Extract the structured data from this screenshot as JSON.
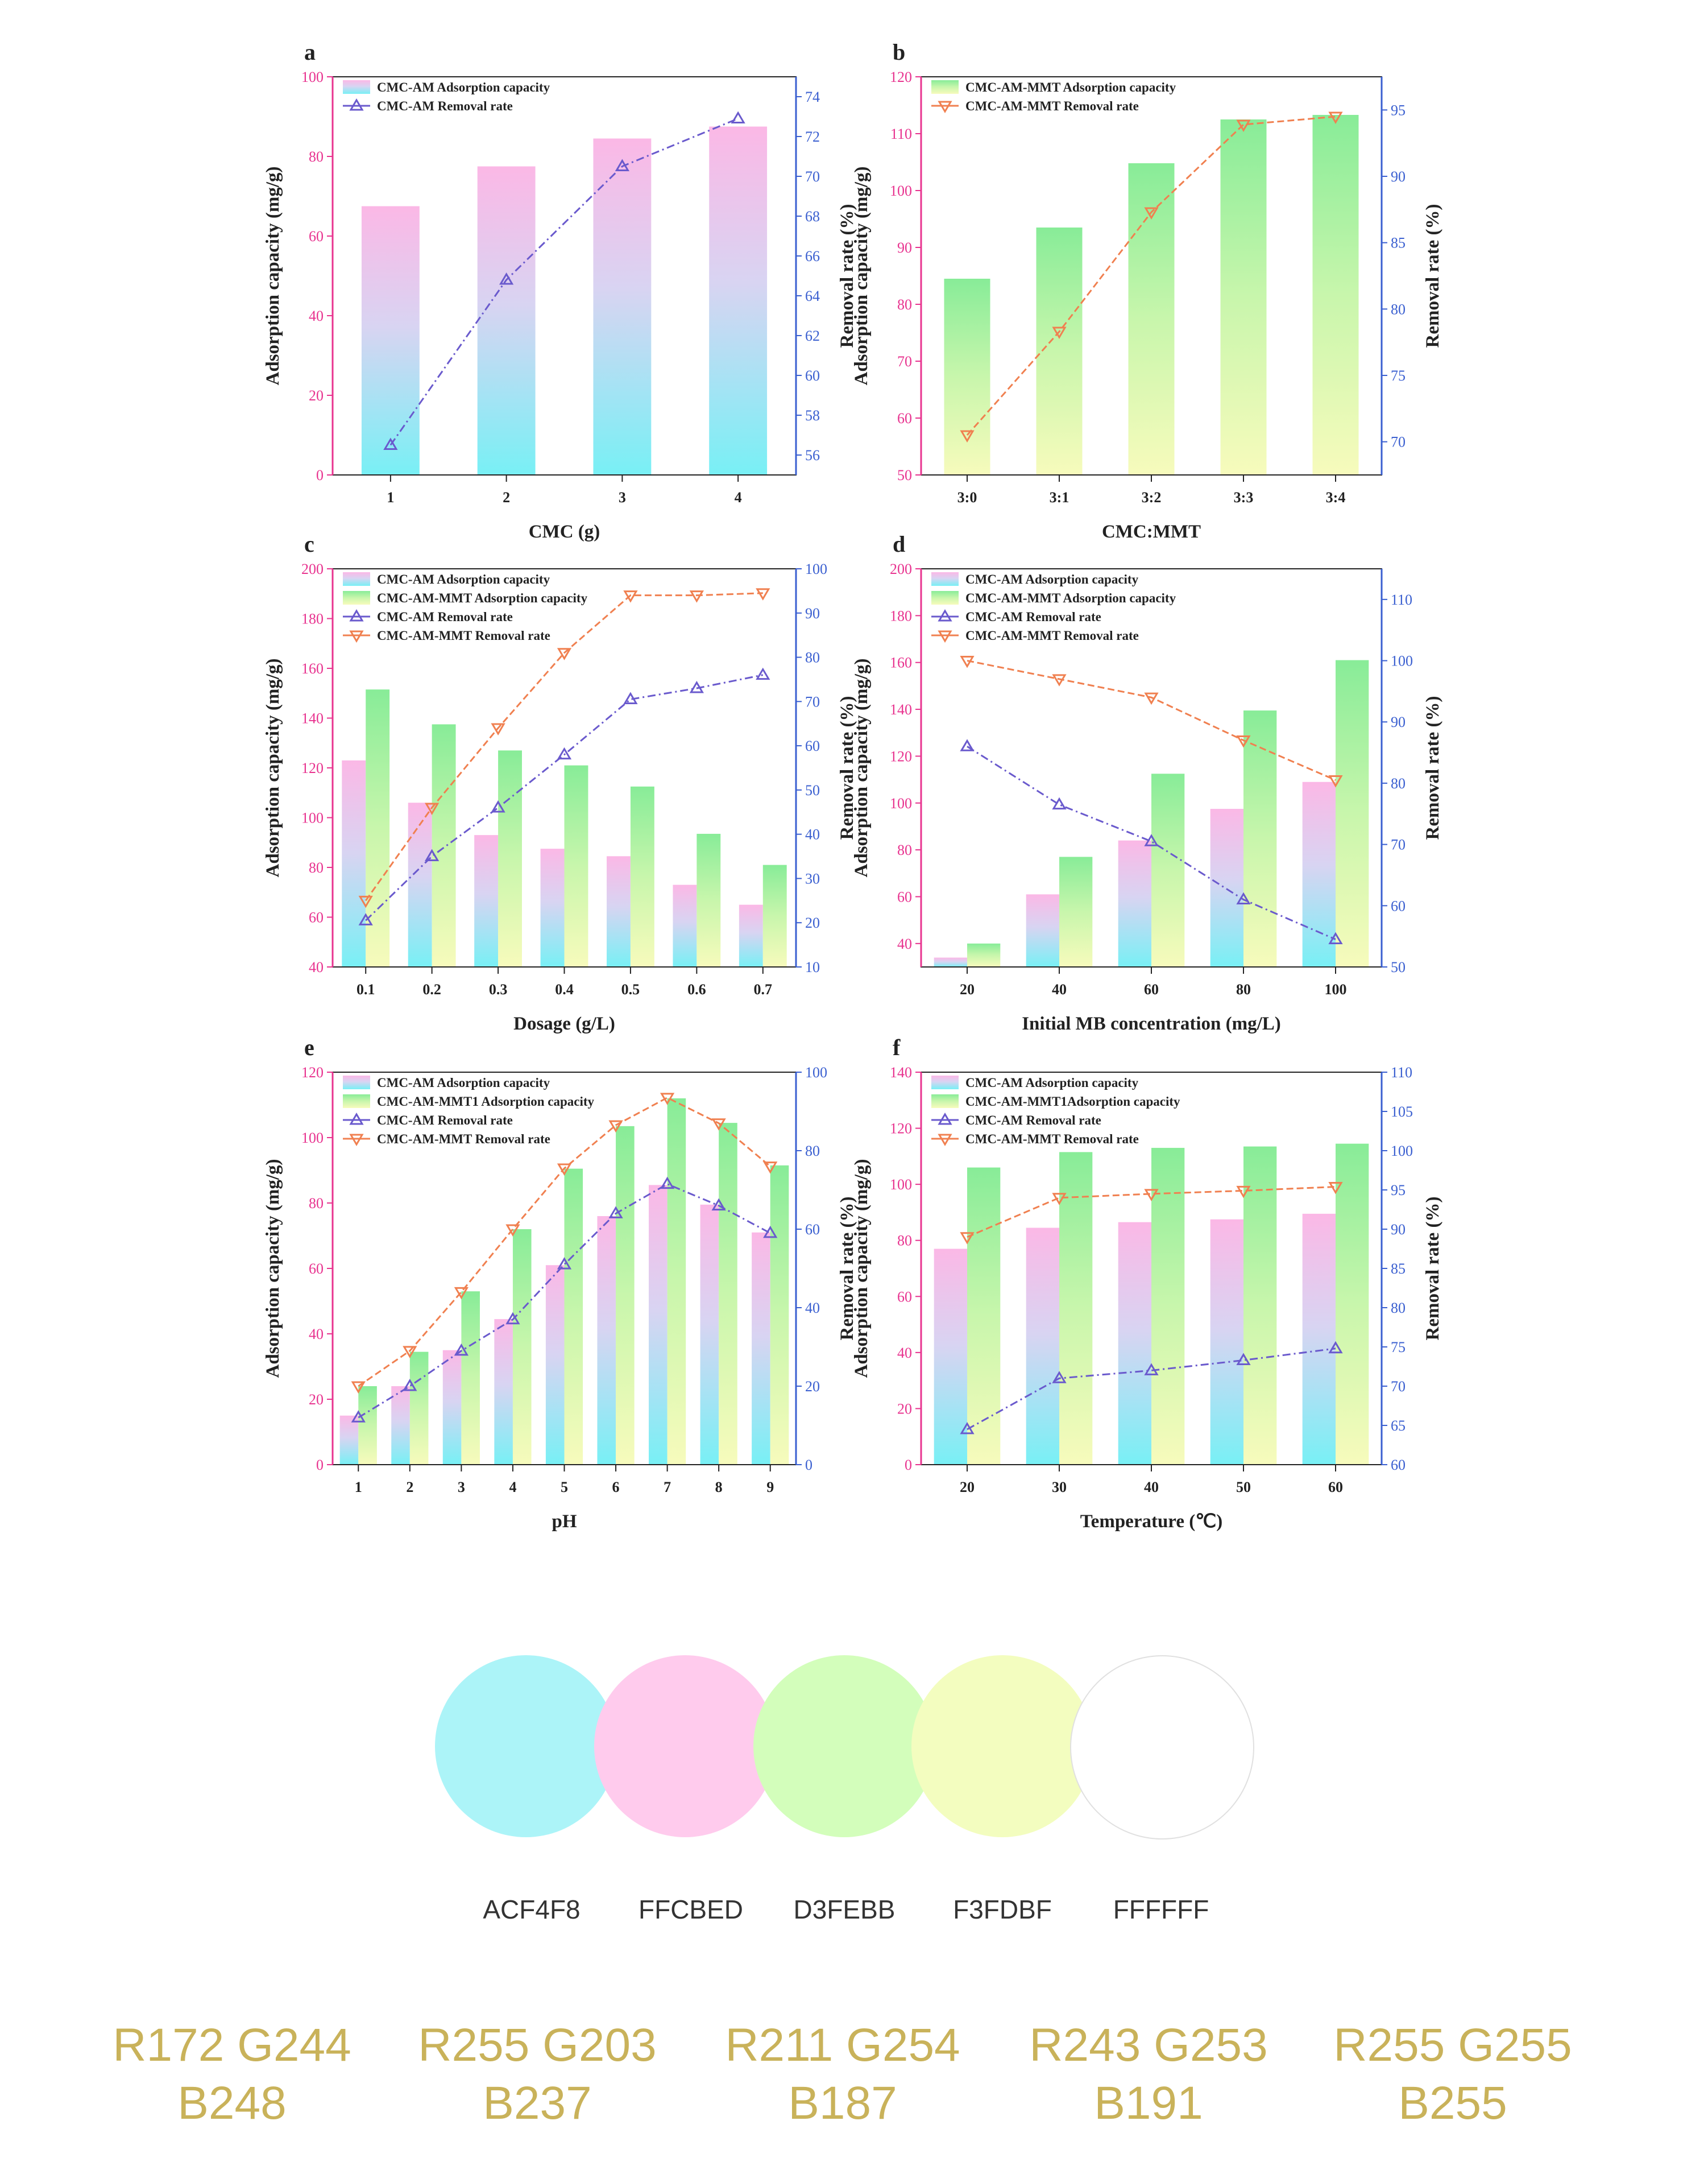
{
  "colors": {
    "am_removal": "#6a5acd",
    "mmt_removal": "#f08050",
    "left_axis": "#e8338f",
    "right_axis": "#3a5fd0",
    "am_bar_top": "#fbbde8",
    "am_bar_bottom": "#7ff0f5",
    "mmt_bar_top": "#8fee9a",
    "mmt_bar_bottom": "#f6fbbb"
  },
  "chart_data": [
    {
      "panel": "a",
      "type": "bar+line",
      "categories": [
        "1",
        "2",
        "3",
        "4"
      ],
      "xlabel": "CMC (g)",
      "ylabel": "Adsorption capacity (mg/g)",
      "y2label": "Removal rate (%)",
      "ylim": [
        0,
        100
      ],
      "yticks": [
        0,
        20,
        40,
        60,
        80,
        100
      ],
      "y2lim": [
        55,
        75
      ],
      "y2ticks": [
        56,
        58,
        60,
        62,
        64,
        66,
        68,
        70,
        72,
        74
      ],
      "series": [
        {
          "name": "CMC-AM Adsorption capacity",
          "kind": "bar",
          "style": "am",
          "values": [
            67.5,
            77.5,
            84.5,
            87.5
          ]
        },
        {
          "name": "CMC-AM Removal rate",
          "kind": "line",
          "style": "am",
          "values": [
            56.5,
            64.8,
            70.5,
            72.9
          ]
        }
      ]
    },
    {
      "panel": "b",
      "type": "bar+line",
      "categories": [
        "3:0",
        "3:1",
        "3:2",
        "3:3",
        "3:4"
      ],
      "xlabel": "CMC:MMT",
      "ylabel": "Adsorption capacity (mg/g)",
      "y2label": "Removal rate (%)",
      "ylim": [
        50,
        120
      ],
      "yticks": [
        50,
        60,
        70,
        80,
        90,
        100,
        110,
        120
      ],
      "y2lim": [
        67.5,
        97.5
      ],
      "y2ticks": [
        70,
        75,
        80,
        85,
        90,
        95
      ],
      "series": [
        {
          "name": "CMC-AM-MMT Adsorption capacity",
          "kind": "bar",
          "style": "mmt",
          "values": [
            84.5,
            93.5,
            104.8,
            112.5,
            113.3
          ]
        },
        {
          "name": "CMC-AM-MMT Removal rate",
          "kind": "line",
          "style": "mmt",
          "values": [
            70.5,
            78.3,
            87.3,
            93.9,
            94.5
          ]
        }
      ]
    },
    {
      "panel": "c",
      "type": "bar+line",
      "categories": [
        "0.1",
        "0.2",
        "0.3",
        "0.4",
        "0.5",
        "0.6",
        "0.7"
      ],
      "xlabel": "Dosage (g/L)",
      "ylabel": "Adsorption capacity (mg/g)",
      "y2label": "Removal rate (%)",
      "ylim": [
        40,
        200
      ],
      "yticks": [
        40,
        60,
        80,
        100,
        120,
        140,
        160,
        180,
        200
      ],
      "y2lim": [
        10,
        100
      ],
      "y2ticks": [
        10,
        20,
        30,
        40,
        50,
        60,
        70,
        80,
        90,
        100
      ],
      "series": [
        {
          "name": "CMC-AM Adsorption capacity",
          "kind": "bar",
          "style": "am",
          "values": [
            123,
            106,
            93,
            87.5,
            84.5,
            73,
            65
          ]
        },
        {
          "name": "CMC-AM-MMT Adsorption capacity",
          "kind": "bar",
          "style": "mmt",
          "values": [
            151.5,
            137.5,
            127,
            121,
            112.5,
            93.5,
            81
          ]
        },
        {
          "name": "CMC-AM Removal rate",
          "kind": "line",
          "style": "am",
          "values": [
            20.5,
            35,
            46,
            58,
            70.5,
            73,
            76
          ]
        },
        {
          "name": "CMC-AM-MMT Removal rate",
          "kind": "line",
          "style": "mmt",
          "values": [
            25,
            46,
            64,
            81,
            94,
            94,
            94.5
          ]
        }
      ]
    },
    {
      "panel": "d",
      "type": "bar+line",
      "categories": [
        "20",
        "40",
        "60",
        "80",
        "100"
      ],
      "xlabel": "Initial MB concentration (mg/L)",
      "ylabel": "Adsorption capacity (mg/g)",
      "y2label": "Removal rate (%)",
      "ylim": [
        30,
        200
      ],
      "yticks": [
        40,
        60,
        80,
        100,
        120,
        140,
        160,
        180,
        200
      ],
      "y2lim": [
        50,
        115
      ],
      "y2ticks": [
        50,
        60,
        70,
        80,
        90,
        100,
        110
      ],
      "series": [
        {
          "name": "CMC-AM Adsorption capacity",
          "kind": "bar",
          "style": "am",
          "values": [
            34,
            61,
            84,
            97.5,
            109
          ]
        },
        {
          "name": "CMC-AM-MMT Adsorption capacity",
          "kind": "bar",
          "style": "mmt",
          "values": [
            40,
            77,
            112.5,
            139.5,
            161
          ]
        },
        {
          "name": "CMC-AM Removal rate",
          "kind": "line",
          "style": "am",
          "values": [
            86,
            76.5,
            70.5,
            61,
            54.5
          ]
        },
        {
          "name": "CMC-AM-MMT Removal rate",
          "kind": "line",
          "style": "mmt",
          "values": [
            100,
            97,
            94,
            87,
            80.5
          ]
        }
      ]
    },
    {
      "panel": "e",
      "type": "bar+line",
      "categories": [
        "1",
        "2",
        "3",
        "4",
        "5",
        "6",
        "7",
        "8",
        "9"
      ],
      "xlabel": "pH",
      "ylabel": "Adsorption capacity (mg/g)",
      "y2label": "Removal rate (%)",
      "ylim": [
        0,
        120
      ],
      "yticks": [
        0,
        20,
        40,
        60,
        80,
        100,
        120
      ],
      "y2lim": [
        0,
        100
      ],
      "y2ticks": [
        0,
        20,
        40,
        60,
        80,
        100
      ],
      "series": [
        {
          "name": "CMC-AM Adsorption capacity",
          "kind": "bar",
          "style": "am",
          "values": [
            15,
            24,
            35,
            44.5,
            61,
            76,
            85.5,
            79.5,
            71
          ]
        },
        {
          "name": "CMC-AM-MMT1 Adsorption capacity",
          "kind": "bar",
          "style": "mmt",
          "values": [
            24,
            34.5,
            53,
            72,
            90.5,
            103.5,
            112,
            104.5,
            91.5
          ]
        },
        {
          "name": "CMC-AM Removal rate",
          "kind": "line",
          "style": "am",
          "values": [
            12,
            20,
            29,
            37,
            51,
            64,
            71.5,
            66,
            59
          ]
        },
        {
          "name": "CMC-AM-MMT Removal rate",
          "kind": "line",
          "style": "mmt",
          "values": [
            20,
            29,
            44,
            60,
            75.5,
            86.5,
            93.5,
            87,
            76
          ]
        }
      ]
    },
    {
      "panel": "f",
      "type": "bar+line",
      "categories": [
        "20",
        "30",
        "40",
        "50",
        "60"
      ],
      "xlabel": "Temperature (℃)",
      "ylabel": "Adsorption capacity (mg/g)",
      "y2label": "Removal rate (%)",
      "ylim": [
        0,
        140
      ],
      "yticks": [
        0,
        20,
        40,
        60,
        80,
        100,
        120,
        140
      ],
      "y2lim": [
        60,
        110
      ],
      "y2ticks": [
        60,
        65,
        70,
        75,
        80,
        85,
        90,
        95,
        100,
        105,
        110
      ],
      "series": [
        {
          "name": "CMC-AM Adsorption capacity",
          "kind": "bar",
          "style": "am",
          "values": [
            77,
            84.5,
            86.5,
            87.5,
            89.5
          ]
        },
        {
          "name": "CMC-AM-MMT1Adsorption capacity",
          "kind": "bar",
          "style": "mmt",
          "values": [
            106,
            111.5,
            113,
            113.5,
            114.5
          ]
        },
        {
          "name": "CMC-AM Removal rate",
          "kind": "line",
          "style": "am",
          "values": [
            64.5,
            71,
            72,
            73.3,
            74.8
          ]
        },
        {
          "name": "CMC-AM-MMT Removal rate",
          "kind": "line",
          "style": "mmt",
          "values": [
            89,
            94,
            94.5,
            94.9,
            95.4
          ]
        }
      ]
    }
  ],
  "palette": [
    {
      "hex_label": "ACF4F8",
      "rgb_label": "R172 G244 B248",
      "color": "#ACF4F8"
    },
    {
      "hex_label": "FFCBED",
      "rgb_label": "R255 G203 B237",
      "color": "#FFCBED"
    },
    {
      "hex_label": "D3FEBB",
      "rgb_label": "R211 G254 B187",
      "color": "#D3FEBB"
    },
    {
      "hex_label": "F3FDBF",
      "rgb_label": "R243 G253 B191",
      "color": "#F3FDBF"
    },
    {
      "hex_label": "FFFFFF",
      "rgb_label": "R255 G255 B255",
      "color": "#FFFFFF"
    }
  ]
}
